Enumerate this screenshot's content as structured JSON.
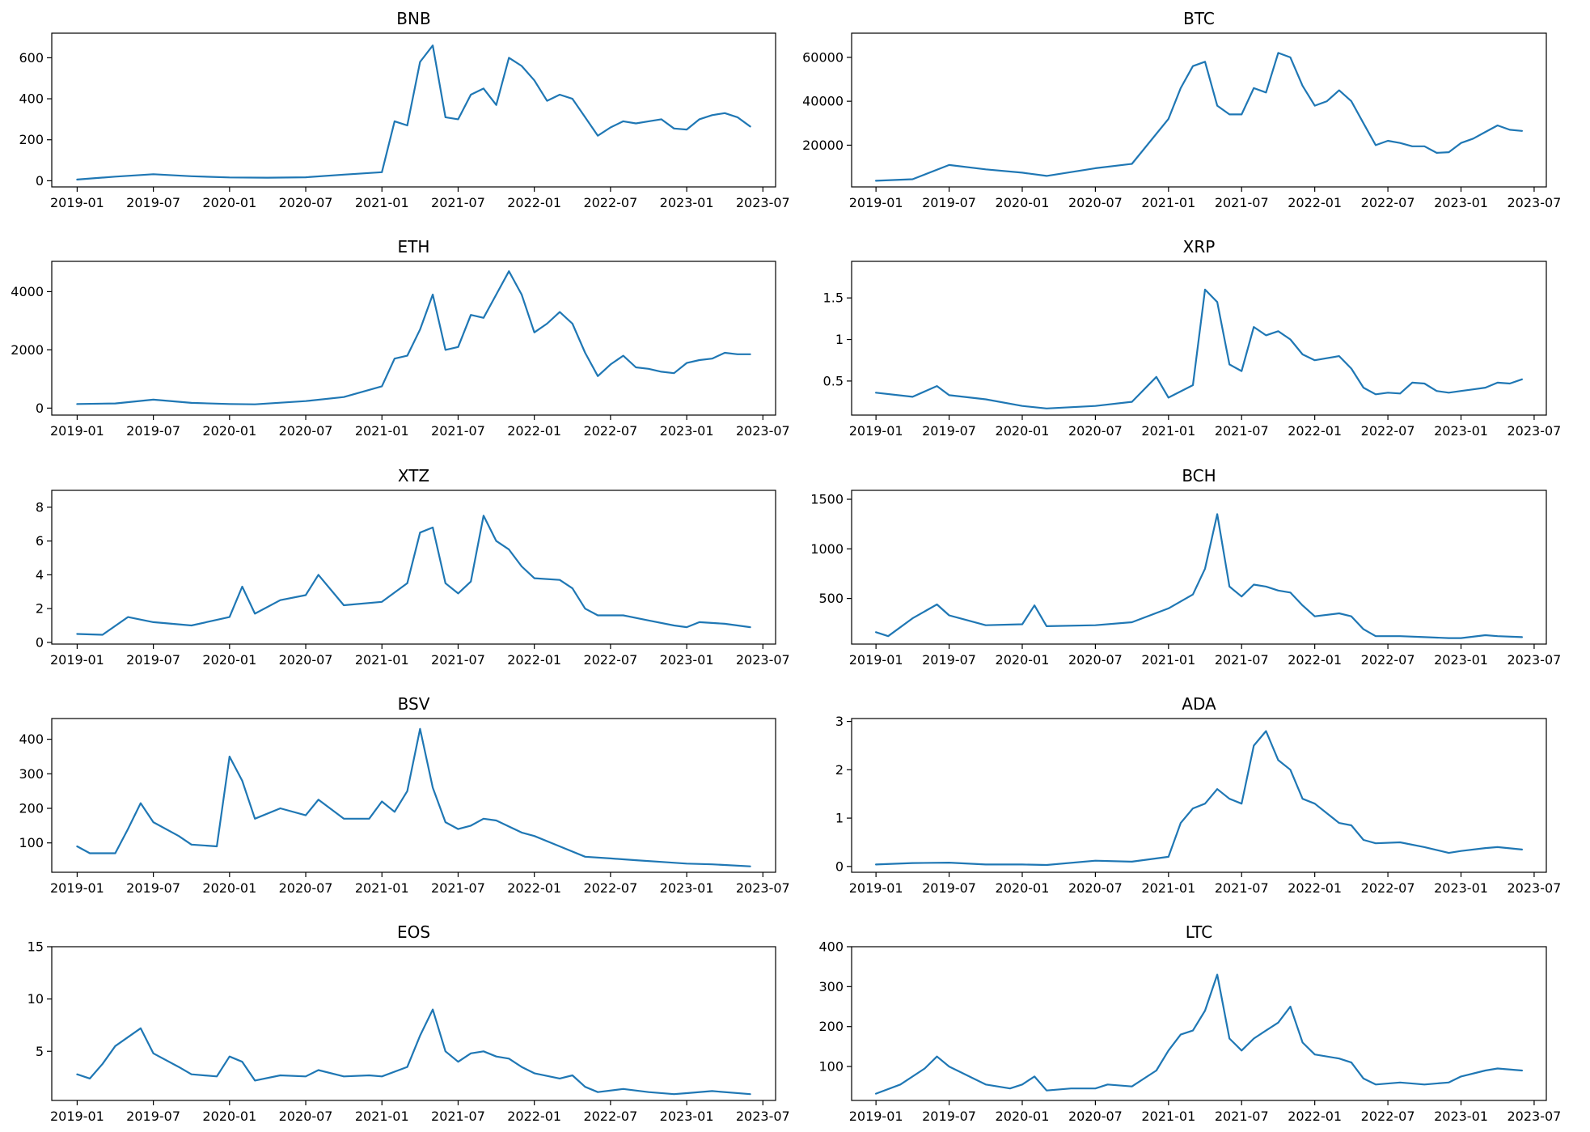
{
  "colors": {
    "line": "#1f77b4",
    "axes": "#000000",
    "background": "#ffffff"
  },
  "chart_data": [
    {
      "type": "line",
      "title": "BNB",
      "x": [
        "2019-01",
        "2019-04",
        "2019-07",
        "2019-10",
        "2020-01",
        "2020-04",
        "2020-07",
        "2020-10",
        "2021-01",
        "2021-02",
        "2021-03",
        "2021-04",
        "2021-05",
        "2021-06",
        "2021-07",
        "2021-08",
        "2021-09",
        "2021-10",
        "2021-11",
        "2021-12",
        "2022-01",
        "2022-02",
        "2022-03",
        "2022-04",
        "2022-05",
        "2022-06",
        "2022-07",
        "2022-08",
        "2022-09",
        "2022-10",
        "2022-11",
        "2022-12",
        "2023-01",
        "2023-02",
        "2023-03",
        "2023-04",
        "2023-05",
        "2023-06"
      ],
      "values": [
        6,
        20,
        32,
        22,
        16,
        15,
        17,
        30,
        42,
        290,
        270,
        580,
        660,
        310,
        300,
        420,
        450,
        370,
        600,
        560,
        490,
        390,
        420,
        400,
        310,
        220,
        260,
        290,
        280,
        290,
        300,
        255,
        250,
        300,
        320,
        330,
        310,
        265
      ],
      "ylim": [
        -30,
        720
      ],
      "yticks": [
        0,
        200,
        400,
        600
      ]
    },
    {
      "type": "line",
      "title": "BTC",
      "x": [
        "2019-01",
        "2019-04",
        "2019-07",
        "2019-10",
        "2020-01",
        "2020-03",
        "2020-07",
        "2020-10",
        "2021-01",
        "2021-02",
        "2021-03",
        "2021-04",
        "2021-05",
        "2021-06",
        "2021-07",
        "2021-08",
        "2021-09",
        "2021-10",
        "2021-11",
        "2021-12",
        "2022-01",
        "2022-02",
        "2022-03",
        "2022-04",
        "2022-05",
        "2022-06",
        "2022-07",
        "2022-08",
        "2022-09",
        "2022-10",
        "2022-11",
        "2022-12",
        "2023-01",
        "2023-02",
        "2023-03",
        "2023-04",
        "2023-05",
        "2023-06"
      ],
      "values": [
        3800,
        4500,
        11000,
        9000,
        7500,
        6000,
        9500,
        11500,
        32000,
        46000,
        56000,
        58000,
        38000,
        34000,
        34000,
        46000,
        44000,
        62000,
        60000,
        47000,
        38000,
        40000,
        45000,
        40000,
        30000,
        20000,
        22000,
        21000,
        19500,
        19500,
        16500,
        16800,
        21000,
        23000,
        26000,
        29000,
        27000,
        26500
      ],
      "ylim": [
        1000,
        71000
      ],
      "yticks": [
        20000,
        40000,
        60000
      ]
    },
    {
      "type": "line",
      "title": "ETH",
      "x": [
        "2019-01",
        "2019-04",
        "2019-07",
        "2019-10",
        "2020-01",
        "2020-03",
        "2020-07",
        "2020-10",
        "2021-01",
        "2021-02",
        "2021-03",
        "2021-04",
        "2021-05",
        "2021-06",
        "2021-07",
        "2021-08",
        "2021-09",
        "2021-10",
        "2021-11",
        "2021-12",
        "2022-01",
        "2022-02",
        "2022-03",
        "2022-04",
        "2022-05",
        "2022-06",
        "2022-07",
        "2022-08",
        "2022-09",
        "2022-10",
        "2022-11",
        "2022-12",
        "2023-01",
        "2023-02",
        "2023-03",
        "2023-04",
        "2023-05",
        "2023-06"
      ],
      "values": [
        140,
        160,
        290,
        180,
        140,
        130,
        240,
        380,
        750,
        1700,
        1800,
        2700,
        3900,
        2000,
        2100,
        3200,
        3100,
        3900,
        4700,
        3900,
        2600,
        2900,
        3300,
        2900,
        1900,
        1100,
        1500,
        1800,
        1400,
        1350,
        1250,
        1200,
        1550,
        1650,
        1700,
        1900,
        1850,
        1850
      ],
      "ylim": [
        -240,
        5040
      ],
      "yticks": [
        0,
        2000,
        4000
      ]
    },
    {
      "type": "line",
      "title": "XRP",
      "x": [
        "2019-01",
        "2019-04",
        "2019-06",
        "2019-07",
        "2019-10",
        "2020-01",
        "2020-03",
        "2020-07",
        "2020-10",
        "2020-12",
        "2021-01",
        "2021-03",
        "2021-04",
        "2021-05",
        "2021-06",
        "2021-07",
        "2021-08",
        "2021-09",
        "2021-10",
        "2021-11",
        "2021-12",
        "2022-01",
        "2022-03",
        "2022-04",
        "2022-05",
        "2022-06",
        "2022-07",
        "2022-08",
        "2022-09",
        "2022-10",
        "2022-11",
        "2022-12",
        "2023-01",
        "2023-02",
        "2023-03",
        "2023-04",
        "2023-05",
        "2023-06"
      ],
      "values": [
        0.36,
        0.31,
        0.44,
        0.33,
        0.28,
        0.2,
        0.17,
        0.2,
        0.25,
        0.55,
        0.3,
        0.45,
        1.6,
        1.45,
        0.7,
        0.62,
        1.15,
        1.05,
        1.1,
        1.0,
        0.82,
        0.75,
        0.8,
        0.65,
        0.42,
        0.34,
        0.36,
        0.35,
        0.48,
        0.47,
        0.38,
        0.36,
        0.38,
        0.4,
        0.42,
        0.48,
        0.47,
        0.52
      ],
      "ylim": [
        0.09,
        1.94
      ],
      "yticks": [
        0.5,
        1.0,
        1.5
      ]
    },
    {
      "type": "line",
      "title": "XTZ",
      "x": [
        "2019-01",
        "2019-03",
        "2019-05",
        "2019-07",
        "2019-10",
        "2020-01",
        "2020-02",
        "2020-03",
        "2020-05",
        "2020-07",
        "2020-08",
        "2020-10",
        "2021-01",
        "2021-03",
        "2021-04",
        "2021-05",
        "2021-06",
        "2021-07",
        "2021-08",
        "2021-09",
        "2021-10",
        "2021-11",
        "2021-12",
        "2022-01",
        "2022-03",
        "2022-04",
        "2022-05",
        "2022-06",
        "2022-08",
        "2022-10",
        "2022-12",
        "2023-01",
        "2023-02",
        "2023-04",
        "2023-06"
      ],
      "values": [
        0.5,
        0.45,
        1.5,
        1.2,
        1.0,
        1.5,
        3.3,
        1.7,
        2.5,
        2.8,
        4.0,
        2.2,
        2.4,
        3.5,
        6.5,
        6.8,
        3.5,
        2.9,
        3.6,
        7.5,
        6.0,
        5.5,
        4.5,
        3.8,
        3.7,
        3.2,
        2.0,
        1.6,
        1.6,
        1.3,
        1.0,
        0.9,
        1.2,
        1.1,
        0.9
      ],
      "ylim": [
        -0.1,
        9.0
      ],
      "yticks": [
        0,
        2,
        4,
        6,
        8
      ]
    },
    {
      "type": "line",
      "title": "BCH",
      "x": [
        "2019-01",
        "2019-02",
        "2019-04",
        "2019-06",
        "2019-07",
        "2019-10",
        "2020-01",
        "2020-02",
        "2020-03",
        "2020-07",
        "2020-10",
        "2021-01",
        "2021-03",
        "2021-04",
        "2021-05",
        "2021-06",
        "2021-07",
        "2021-08",
        "2021-09",
        "2021-10",
        "2021-11",
        "2021-12",
        "2022-01",
        "2022-03",
        "2022-04",
        "2022-05",
        "2022-06",
        "2022-08",
        "2022-10",
        "2022-12",
        "2023-01",
        "2023-03",
        "2023-04",
        "2023-06"
      ],
      "values": [
        160,
        120,
        300,
        440,
        330,
        230,
        240,
        430,
        220,
        230,
        260,
        400,
        540,
        800,
        1350,
        620,
        520,
        640,
        620,
        580,
        560,
        430,
        320,
        350,
        320,
        190,
        120,
        120,
        110,
        100,
        100,
        130,
        120,
        110
      ],
      "ylim": [
        40,
        1590
      ],
      "yticks": [
        500,
        1000,
        1500
      ]
    },
    {
      "type": "line",
      "title": "BSV",
      "x": [
        "2019-01",
        "2019-02",
        "2019-04",
        "2019-05",
        "2019-06",
        "2019-07",
        "2019-09",
        "2019-10",
        "2019-12",
        "2020-01",
        "2020-02",
        "2020-03",
        "2020-05",
        "2020-07",
        "2020-08",
        "2020-10",
        "2020-12",
        "2021-01",
        "2021-02",
        "2021-03",
        "2021-04",
        "2021-05",
        "2021-06",
        "2021-07",
        "2021-08",
        "2021-09",
        "2021-10",
        "2021-12",
        "2022-01",
        "2022-03",
        "2022-05",
        "2022-07",
        "2022-09",
        "2022-11",
        "2023-01",
        "2023-03",
        "2023-06"
      ],
      "values": [
        90,
        70,
        70,
        140,
        215,
        160,
        120,
        95,
        90,
        350,
        280,
        170,
        200,
        180,
        225,
        170,
        170,
        220,
        190,
        250,
        430,
        260,
        160,
        140,
        150,
        170,
        165,
        130,
        120,
        90,
        60,
        55,
        50,
        45,
        40,
        38,
        32
      ],
      "ylim": [
        15,
        460
      ],
      "yticks": [
        100,
        200,
        300,
        400
      ]
    },
    {
      "type": "line",
      "title": "ADA",
      "x": [
        "2019-01",
        "2019-04",
        "2019-07",
        "2019-10",
        "2020-01",
        "2020-03",
        "2020-07",
        "2020-10",
        "2021-01",
        "2021-02",
        "2021-03",
        "2021-04",
        "2021-05",
        "2021-06",
        "2021-07",
        "2021-08",
        "2021-09",
        "2021-10",
        "2021-11",
        "2021-12",
        "2022-01",
        "2022-02",
        "2022-03",
        "2022-04",
        "2022-05",
        "2022-06",
        "2022-08",
        "2022-10",
        "2022-12",
        "2023-01",
        "2023-03",
        "2023-04",
        "2023-06"
      ],
      "values": [
        0.04,
        0.07,
        0.08,
        0.04,
        0.04,
        0.03,
        0.12,
        0.1,
        0.2,
        0.9,
        1.2,
        1.3,
        1.6,
        1.4,
        1.3,
        2.5,
        2.8,
        2.2,
        2.0,
        1.4,
        1.3,
        1.1,
        0.9,
        0.85,
        0.55,
        0.48,
        0.5,
        0.4,
        0.28,
        0.32,
        0.38,
        0.4,
        0.35
      ],
      "ylim": [
        -0.12,
        3.06
      ],
      "yticks": [
        0,
        1,
        2,
        3
      ]
    },
    {
      "type": "line",
      "title": "EOS",
      "x": [
        "2019-01",
        "2019-02",
        "2019-03",
        "2019-04",
        "2019-06",
        "2019-07",
        "2019-09",
        "2019-10",
        "2019-12",
        "2020-01",
        "2020-02",
        "2020-03",
        "2020-05",
        "2020-07",
        "2020-08",
        "2020-10",
        "2020-12",
        "2021-01",
        "2021-03",
        "2021-04",
        "2021-05",
        "2021-06",
        "2021-07",
        "2021-08",
        "2021-09",
        "2021-10",
        "2021-11",
        "2021-12",
        "2022-01",
        "2022-03",
        "2022-04",
        "2022-05",
        "2022-06",
        "2022-08",
        "2022-10",
        "2022-12",
        "2023-01",
        "2023-03",
        "2023-06"
      ],
      "values": [
        2.8,
        2.4,
        3.8,
        5.5,
        7.2,
        4.8,
        3.5,
        2.8,
        2.6,
        4.5,
        4.0,
        2.2,
        2.7,
        2.6,
        3.2,
        2.6,
        2.7,
        2.6,
        3.5,
        6.5,
        9.0,
        5.0,
        4.0,
        4.8,
        5.0,
        4.5,
        4.3,
        3.5,
        2.9,
        2.4,
        2.7,
        1.6,
        1.1,
        1.4,
        1.1,
        0.9,
        1.0,
        1.2,
        0.9
      ],
      "ylim": [
        0.3,
        15.0
      ],
      "yticks": [
        5,
        10,
        15
      ]
    },
    {
      "type": "line",
      "title": "LTC",
      "x": [
        "2019-01",
        "2019-03",
        "2019-05",
        "2019-06",
        "2019-07",
        "2019-09",
        "2019-10",
        "2019-12",
        "2020-01",
        "2020-02",
        "2020-03",
        "2020-05",
        "2020-07",
        "2020-08",
        "2020-10",
        "2020-12",
        "2021-01",
        "2021-02",
        "2021-03",
        "2021-04",
        "2021-05",
        "2021-06",
        "2021-07",
        "2021-08",
        "2021-09",
        "2021-10",
        "2021-11",
        "2021-12",
        "2022-01",
        "2022-03",
        "2022-04",
        "2022-05",
        "2022-06",
        "2022-08",
        "2022-10",
        "2022-12",
        "2023-01",
        "2023-03",
        "2023-04",
        "2023-06"
      ],
      "values": [
        32,
        55,
        95,
        125,
        100,
        70,
        55,
        45,
        55,
        75,
        40,
        45,
        45,
        55,
        50,
        90,
        140,
        180,
        190,
        240,
        330,
        170,
        140,
        170,
        190,
        210,
        250,
        160,
        130,
        120,
        110,
        70,
        55,
        60,
        55,
        60,
        75,
        90,
        95,
        90
      ],
      "ylim": [
        15,
        400
      ],
      "yticks": [
        100,
        200,
        300,
        400
      ]
    }
  ],
  "x_axis": {
    "tick_labels": [
      "2019-01",
      "2019-07",
      "2020-01",
      "2020-07",
      "2021-01",
      "2021-07",
      "2022-01",
      "2022-07",
      "2023-01",
      "2023-07"
    ],
    "range": [
      "2018-11",
      "2023-08"
    ]
  }
}
